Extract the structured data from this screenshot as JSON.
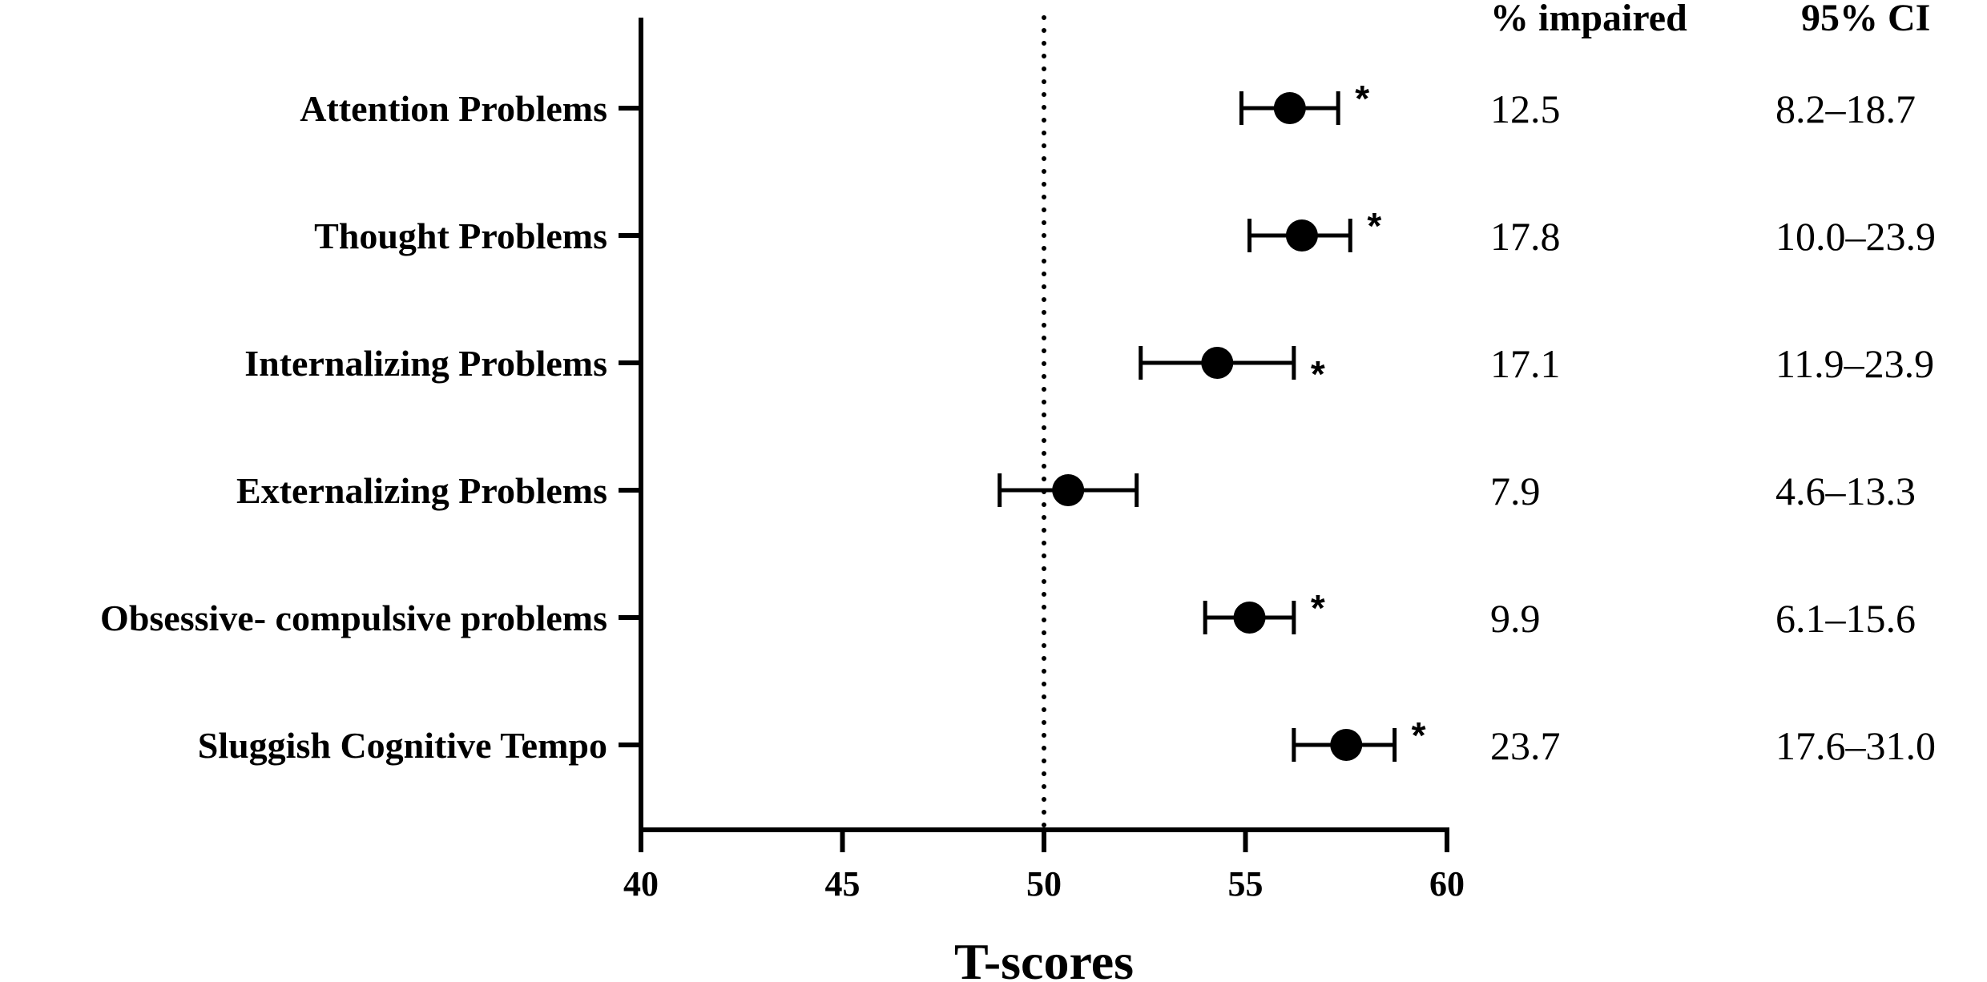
{
  "chart_data": {
    "type": "scatter",
    "subtype": "forest-plot",
    "xlabel": "T-scores",
    "xlim": [
      40,
      60
    ],
    "xticks": [
      40,
      45,
      50,
      55,
      60
    ],
    "reference_line": 50,
    "categories": [
      "Attention Problems",
      "Thought Problems",
      "Internalizing Problems",
      "Externalizing Problems",
      "Obsessive- compulsive problems",
      "Sluggish Cognitive Tempo"
    ],
    "points": [
      {
        "label": "Attention Problems",
        "value": 56.1,
        "ci_low": 54.9,
        "ci_high": 57.3,
        "significant": true
      },
      {
        "label": "Thought Problems",
        "value": 56.4,
        "ci_low": 55.1,
        "ci_high": 57.6,
        "significant": true
      },
      {
        "label": "Internalizing Problems",
        "value": 54.3,
        "ci_low": 52.4,
        "ci_high": 56.2,
        "significant": true
      },
      {
        "label": "Externalizing Problems",
        "value": 50.6,
        "ci_low": 48.9,
        "ci_high": 52.3,
        "significant": false
      },
      {
        "label": "Obsessive- compulsive problems",
        "value": 55.1,
        "ci_low": 54.0,
        "ci_high": 56.2,
        "significant": true
      },
      {
        "label": "Sluggish Cognitive Tempo",
        "value": 57.5,
        "ci_low": 56.2,
        "ci_high": 58.7,
        "significant": true
      }
    ],
    "significance_marker": "*",
    "table": {
      "headers": [
        "% impaired",
        "95% CI"
      ],
      "rows": [
        [
          "12.5",
          "8.2–18.7"
        ],
        [
          "17.8",
          "10.0–23.9"
        ],
        [
          "17.1",
          "11.9–23.9"
        ],
        [
          "7.9",
          "4.6–13.3"
        ],
        [
          "9.9",
          "6.1–15.6"
        ],
        [
          "23.7",
          "17.6–31.0"
        ]
      ]
    }
  }
}
